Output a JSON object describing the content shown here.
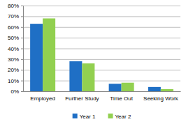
{
  "chart_data": {
    "type": "bar",
    "categories": [
      "Employed",
      "Further Study",
      "Time Out",
      "Seeking Work"
    ],
    "series": [
      {
        "name": "Year 1",
        "color": "#1f6fc5",
        "values": [
          63,
          28,
          7,
          4
        ]
      },
      {
        "name": "Year 2",
        "color": "#92d050",
        "values": [
          68,
          26,
          8,
          2
        ]
      }
    ],
    "ylim": [
      0,
      80
    ],
    "yticks": [
      {
        "value": 0,
        "label": "0%"
      },
      {
        "value": 10,
        "label": "10%"
      },
      {
        "value": 20,
        "label": "20%"
      },
      {
        "value": 30,
        "label": "30%"
      },
      {
        "value": 40,
        "label": "40%"
      },
      {
        "value": 50,
        "label": "50%"
      },
      {
        "value": 60,
        "label": "60%"
      },
      {
        "value": 70,
        "label": "70%"
      },
      {
        "value": 80,
        "label": "80%"
      }
    ],
    "grid": true,
    "legend": "bottom"
  }
}
